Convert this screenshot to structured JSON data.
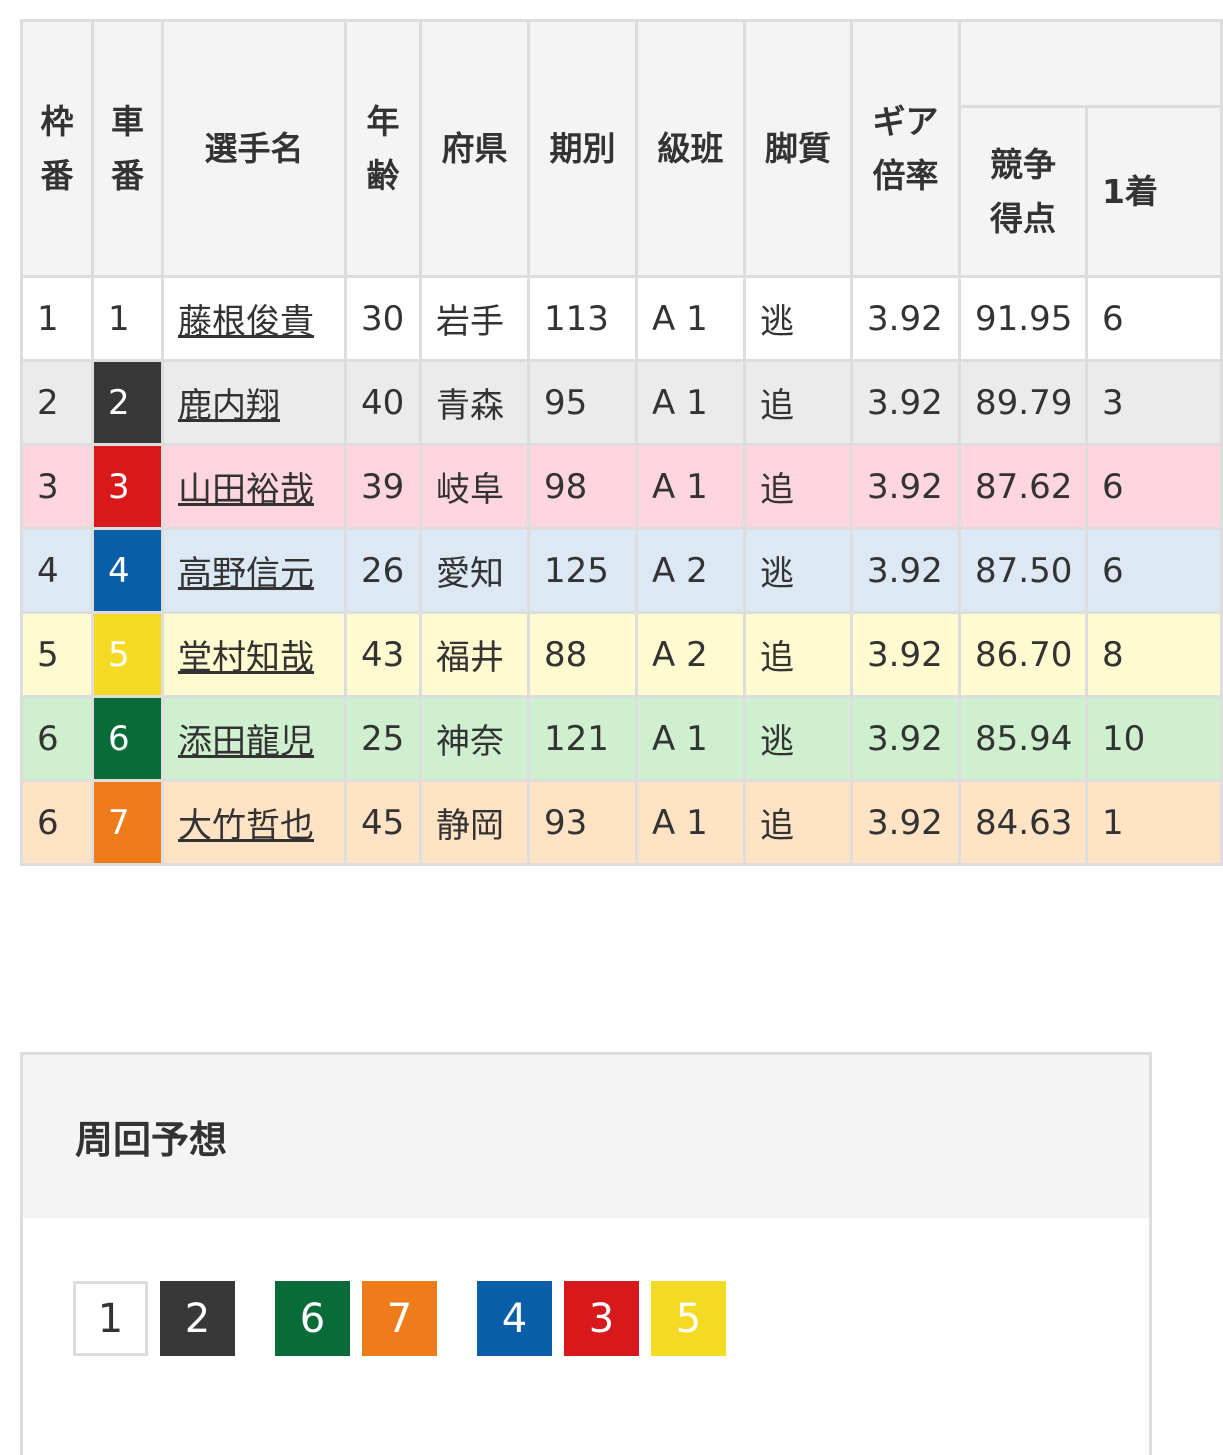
{
  "table": {
    "headers": {
      "waku": "枠番",
      "car": "車番",
      "name": "選手名",
      "age": "年齢",
      "pref": "府県",
      "term": "期別",
      "class": "級班",
      "style": "脚質",
      "gear": "ギア倍率",
      "score": "競争得点",
      "first": "1着"
    },
    "rows": [
      {
        "waku": "1",
        "car": "1",
        "name": "藤根俊貴",
        "age": "30",
        "pref": "岩手",
        "term": "113",
        "class": "A 1",
        "style": "逃",
        "gear": "3.92",
        "score": "91.95",
        "first": "6",
        "bg": "#ffffff",
        "car_color": "#ffffff",
        "car_text": "#333333"
      },
      {
        "waku": "2",
        "car": "2",
        "name": "鹿内翔",
        "age": "40",
        "pref": "青森",
        "term": "95",
        "class": "A 1",
        "style": "追",
        "gear": "3.92",
        "score": "89.79",
        "first": "3",
        "bg": "#ebebeb",
        "car_color": "#383838",
        "car_text": "#ffffff"
      },
      {
        "waku": "3",
        "car": "3",
        "name": "山田裕哉",
        "age": "39",
        "pref": "岐阜",
        "term": "98",
        "class": "A 1",
        "style": "追",
        "gear": "3.92",
        "score": "87.62",
        "first": "6",
        "bg": "#ffd5df",
        "car_color": "#d7191c",
        "car_text": "#ffffff"
      },
      {
        "waku": "4",
        "car": "4",
        "name": "高野信元",
        "age": "26",
        "pref": "愛知",
        "term": "125",
        "class": "A 2",
        "style": "逃",
        "gear": "3.92",
        "score": "87.50",
        "first": "6",
        "bg": "#dce9f5",
        "car_color": "#0b5ea8",
        "car_text": "#ffffff"
      },
      {
        "waku": "5",
        "car": "5",
        "name": "堂村知哉",
        "age": "43",
        "pref": "福井",
        "term": "88",
        "class": "A 2",
        "style": "追",
        "gear": "3.92",
        "score": "86.70",
        "first": "8",
        "bg": "#fffbd1",
        "car_color": "#f5da25",
        "car_text": "#ffffff"
      },
      {
        "waku": "6",
        "car": "6",
        "name": "添田龍児",
        "age": "25",
        "pref": "神奈",
        "term": "121",
        "class": "A 1",
        "style": "逃",
        "gear": "3.92",
        "score": "85.94",
        "first": "10",
        "bg": "#cff0cf",
        "car_color": "#086b38",
        "car_text": "#ffffff"
      },
      {
        "waku": "6",
        "car": "7",
        "name": "大竹哲也",
        "age": "45",
        "pref": "静岡",
        "term": "93",
        "class": "A 1",
        "style": "追",
        "gear": "3.92",
        "score": "84.63",
        "first": "1",
        "bg": "#ffe3c4",
        "car_color": "#ee7c1b",
        "car_text": "#ffffff"
      }
    ]
  },
  "lap_forecast": {
    "title": "周回予想",
    "groups": [
      [
        "1",
        "2"
      ],
      [
        "6",
        "7"
      ],
      [
        "4",
        "3",
        "5"
      ]
    ]
  }
}
